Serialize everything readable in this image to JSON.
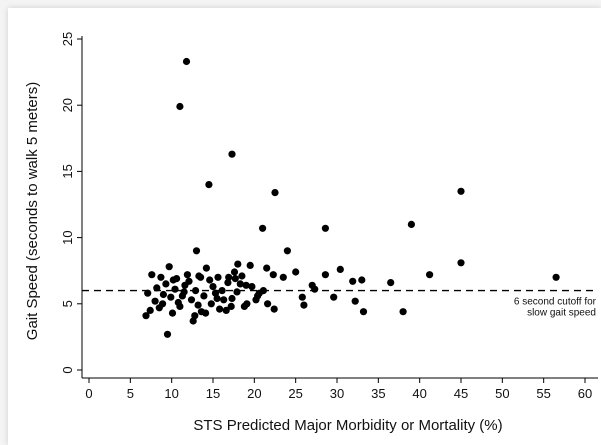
{
  "chart_data": {
    "type": "scatter",
    "xlabel": "STS Predicted Major Morbidity or Mortality (%)",
    "ylabel": "Gait Speed (seconds to walk 5 meters)",
    "xlim": [
      0,
      60
    ],
    "ylim": [
      0,
      25
    ],
    "x_ticks": [
      "0",
      "5",
      "10",
      "15",
      "20",
      "25",
      "30",
      "35",
      "40",
      "45",
      "50",
      "55",
      "60"
    ],
    "y_ticks": [
      "0",
      "5",
      "10",
      "15",
      "20",
      "25"
    ],
    "grid": false,
    "reference_line": {
      "y": 6,
      "style": "dashed",
      "label_line1": "6 second cutoff for",
      "label_line2": "slow gait speed"
    },
    "marker_color": "#000000",
    "points": [
      [
        11.8,
        23.3
      ],
      [
        11.0,
        19.9
      ],
      [
        17.3,
        16.3
      ],
      [
        14.5,
        14.0
      ],
      [
        22.5,
        13.4
      ],
      [
        45.0,
        13.5
      ],
      [
        39.0,
        11.0
      ],
      [
        21.0,
        10.7
      ],
      [
        28.6,
        10.7
      ],
      [
        24.0,
        9.0
      ],
      [
        13.0,
        9.0
      ],
      [
        45.0,
        8.1
      ],
      [
        41.2,
        7.2
      ],
      [
        56.5,
        7.0
      ],
      [
        36.5,
        6.6
      ],
      [
        38.0,
        4.4
      ],
      [
        33.2,
        4.4
      ],
      [
        32.2,
        5.2
      ],
      [
        33.0,
        6.8
      ],
      [
        31.9,
        6.7
      ],
      [
        30.4,
        7.6
      ],
      [
        28.6,
        7.2
      ],
      [
        29.6,
        5.5
      ],
      [
        27.0,
        6.4
      ],
      [
        27.3,
        6.1
      ],
      [
        25.8,
        5.5
      ],
      [
        26.0,
        4.9
      ],
      [
        25.0,
        7.4
      ],
      [
        23.5,
        7.0
      ],
      [
        22.3,
        7.2
      ],
      [
        21.5,
        7.7
      ],
      [
        22.4,
        4.6
      ],
      [
        21.6,
        5.0
      ],
      [
        21.1,
        6.0
      ],
      [
        20.4,
        5.6
      ],
      [
        19.7,
        6.3
      ],
      [
        20.2,
        5.3
      ],
      [
        20.6,
        5.8
      ],
      [
        19.5,
        7.9
      ],
      [
        18.5,
        7.1
      ],
      [
        18.0,
        8.0
      ],
      [
        17.6,
        7.4
      ],
      [
        18.3,
        6.5
      ],
      [
        17.9,
        5.9
      ],
      [
        17.3,
        5.4
      ],
      [
        16.8,
        6.6
      ],
      [
        17.2,
        4.8
      ],
      [
        16.3,
        5.3
      ],
      [
        16.1,
        6.0
      ],
      [
        15.8,
        4.6
      ],
      [
        15.5,
        5.4
      ],
      [
        15.0,
        6.3
      ],
      [
        14.6,
        6.8
      ],
      [
        14.2,
        7.7
      ],
      [
        14.8,
        5.0
      ],
      [
        13.9,
        5.6
      ],
      [
        13.6,
        4.4
      ],
      [
        13.2,
        4.9
      ],
      [
        13.3,
        7.1
      ],
      [
        12.9,
        6.0
      ],
      [
        12.6,
        3.7
      ],
      [
        12.4,
        5.3
      ],
      [
        11.9,
        7.2
      ],
      [
        11.6,
        6.4
      ],
      [
        11.3,
        5.6
      ],
      [
        11.0,
        4.8
      ],
      [
        10.6,
        6.9
      ],
      [
        10.4,
        6.1
      ],
      [
        10.1,
        4.3
      ],
      [
        9.7,
        7.8
      ],
      [
        9.5,
        2.7
      ],
      [
        9.3,
        6.5
      ],
      [
        9.0,
        5.7
      ],
      [
        8.7,
        7.0
      ],
      [
        8.5,
        4.7
      ],
      [
        8.2,
        6.2
      ],
      [
        8.0,
        5.2
      ],
      [
        7.6,
        7.2
      ],
      [
        7.4,
        4.5
      ],
      [
        7.1,
        5.8
      ],
      [
        6.9,
        4.1
      ],
      [
        10.8,
        5.1
      ],
      [
        9.9,
        5.5
      ],
      [
        12.1,
        6.7
      ],
      [
        15.3,
        5.8
      ],
      [
        16.6,
        4.5
      ],
      [
        19.1,
        5.0
      ],
      [
        14.1,
        4.3
      ],
      [
        13.5,
        7.0
      ],
      [
        12.8,
        4.1
      ],
      [
        18.8,
        4.8
      ],
      [
        16.9,
        7.0
      ],
      [
        11.5,
        5.9
      ],
      [
        10.2,
        6.8
      ],
      [
        8.9,
        5.0
      ],
      [
        17.7,
        6.9
      ],
      [
        19.0,
        6.4
      ],
      [
        15.6,
        7.0
      ]
    ]
  }
}
